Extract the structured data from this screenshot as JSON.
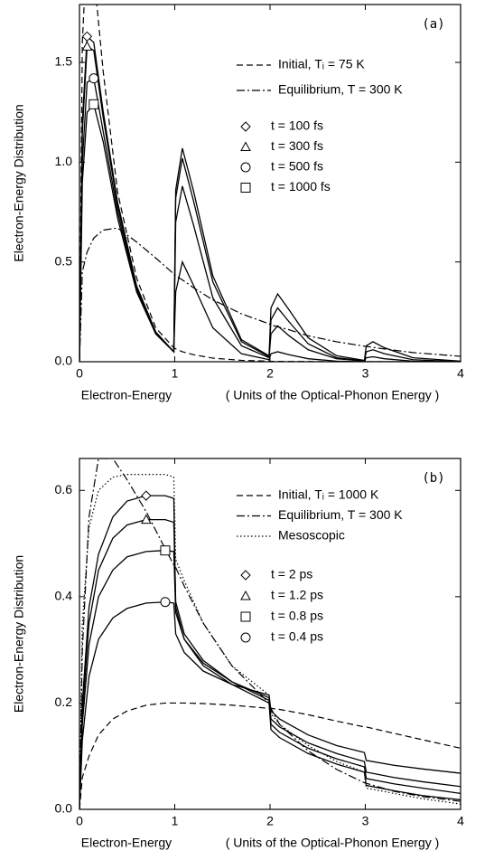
{
  "chart_data": [
    {
      "type": "line",
      "panel_label": "(a)",
      "ylabel": "Electron-Energy Distribution",
      "xlabel": "Electron-Energy",
      "xlabel_note": "( Units of the Optical-Phonon Energy )",
      "xlim": [
        0,
        4
      ],
      "xticks": [
        0,
        1,
        2,
        3,
        4
      ],
      "ylim": [
        0,
        1.79
      ],
      "yticks": [
        {
          "value": 0,
          "label": "0.0"
        },
        0.5,
        {
          "value": 1,
          "label": "1.0"
        },
        1.5
      ],
      "x": [
        0,
        0.03,
        0.08,
        0.15,
        0.25,
        0.4,
        0.6,
        0.8,
        0.99,
        1.01,
        1.08,
        1.2,
        1.4,
        1.7,
        1.99,
        2.01,
        2.08,
        2.2,
        2.4,
        2.7,
        2.99,
        3.01,
        3.08,
        3.2,
        3.5,
        4
      ],
      "series": [
        {
          "name": "Initial, Tᵢ = 75 K",
          "color": "#000000",
          "dash": "dashed",
          "marker": null,
          "values": [
            0,
            1.6,
            2.1,
            1.95,
            1.45,
            0.85,
            0.42,
            0.17,
            0.07,
            0.065,
            0.05,
            0.035,
            0.018,
            0.007,
            0.003,
            0.002,
            0.002,
            0.001,
            0.001,
            0,
            0,
            0,
            0,
            0,
            0,
            0
          ]
        },
        {
          "name": "Equilibrium, T = 300 K",
          "color": "#000000",
          "dash": "dashdot",
          "marker": null,
          "values": [
            0,
            0.45,
            0.55,
            0.62,
            0.66,
            0.67,
            0.6,
            0.52,
            0.44,
            0.43,
            0.41,
            0.37,
            0.31,
            0.24,
            0.19,
            0.185,
            0.175,
            0.16,
            0.13,
            0.1,
            0.078,
            0.077,
            0.072,
            0.064,
            0.046,
            0.027
          ]
        },
        {
          "name": "t = 100 fs",
          "color": "#000000",
          "dash": "solid",
          "marker": "diamond",
          "values": [
            0,
            1.2,
            1.63,
            1.6,
            1.25,
            0.8,
            0.38,
            0.15,
            0.05,
            0.35,
            0.5,
            0.38,
            0.17,
            0.04,
            0.01,
            0.04,
            0.05,
            0.035,
            0.015,
            0.003,
            0,
            0,
            0,
            0,
            0,
            0
          ]
        },
        {
          "name": "t = 300 fs",
          "color": "#000000",
          "dash": "solid",
          "marker": "triangle",
          "values": [
            0,
            1.15,
            1.58,
            1.56,
            1.22,
            0.78,
            0.37,
            0.14,
            0.05,
            0.7,
            0.88,
            0.68,
            0.32,
            0.08,
            0.02,
            0.14,
            0.18,
            0.13,
            0.06,
            0.015,
            0.003,
            0.02,
            0.025,
            0.015,
            0.003,
            0
          ]
        },
        {
          "name": "t = 500 fs",
          "color": "#000000",
          "dash": "solid",
          "marker": "circle",
          "values": [
            0,
            1.0,
            1.4,
            1.42,
            1.15,
            0.75,
            0.36,
            0.14,
            0.05,
            0.82,
            1.02,
            0.8,
            0.4,
            0.1,
            0.025,
            0.21,
            0.27,
            0.2,
            0.09,
            0.02,
            0.005,
            0.05,
            0.06,
            0.04,
            0.01,
            0
          ]
        },
        {
          "name": "t = 1000 fs",
          "color": "#000000",
          "dash": "solid",
          "marker": "square",
          "values": [
            0,
            0.9,
            1.25,
            1.29,
            1.1,
            0.72,
            0.35,
            0.14,
            0.05,
            0.86,
            1.07,
            0.85,
            0.43,
            0.11,
            0.03,
            0.27,
            0.34,
            0.26,
            0.12,
            0.03,
            0.007,
            0.08,
            0.1,
            0.07,
            0.02,
            0.003
          ]
        }
      ]
    },
    {
      "type": "line",
      "panel_label": "(b)",
      "ylabel": "Electron-Energy Distribution",
      "xlabel": "Electron-Energy",
      "xlabel_note": "( Units of the Optical-Phonon Energy )",
      "xlim": [
        0,
        4
      ],
      "xticks": [
        0,
        1,
        2,
        3,
        4
      ],
      "ylim": [
        0,
        0.66
      ],
      "yticks": [
        {
          "value": 0,
          "label": "0.0"
        },
        0.2,
        0.4,
        0.6
      ],
      "x": [
        0,
        0.03,
        0.1,
        0.2,
        0.35,
        0.5,
        0.7,
        0.9,
        0.99,
        1.01,
        1.1,
        1.3,
        1.6,
        1.99,
        2.01,
        2.1,
        2.4,
        2.7,
        2.99,
        3.01,
        3.3,
        3.6,
        4
      ],
      "series": [
        {
          "name": "Initial, Tᵢ = 1000 K",
          "color": "#000000",
          "dash": "dashed",
          "marker": null,
          "values": [
            0,
            0.06,
            0.1,
            0.14,
            0.17,
            0.185,
            0.196,
            0.2,
            0.2,
            0.2,
            0.2,
            0.199,
            0.196,
            0.19,
            0.19,
            0.188,
            0.178,
            0.166,
            0.155,
            0.155,
            0.143,
            0.131,
            0.115
          ]
        },
        {
          "name": "Equilibrium, T = 300 K",
          "color": "#000000",
          "dash": "dashdot",
          "marker": null,
          "values": [
            0,
            0.3,
            0.55,
            0.66,
            0.66,
            0.62,
            0.56,
            0.49,
            0.46,
            0.455,
            0.42,
            0.35,
            0.27,
            0.2,
            0.19,
            0.16,
            0.11,
            0.075,
            0.05,
            0.049,
            0.034,
            0.024,
            0.015
          ]
        },
        {
          "name": "Mesoscopic",
          "color": "#000000",
          "dash": "dotted",
          "marker": null,
          "values": [
            0,
            0.35,
            0.53,
            0.6,
            0.625,
            0.63,
            0.63,
            0.63,
            0.625,
            0.47,
            0.43,
            0.35,
            0.27,
            0.215,
            0.18,
            0.16,
            0.12,
            0.09,
            0.07,
            0.04,
            0.03,
            0.02,
            0.01
          ]
        },
        {
          "name": "t = 2 ps",
          "color": "#000000",
          "dash": "solid",
          "marker": "diamond",
          "values": [
            0,
            0.2,
            0.38,
            0.48,
            0.55,
            0.58,
            0.59,
            0.59,
            0.585,
            0.38,
            0.32,
            0.27,
            0.235,
            0.2,
            0.15,
            0.135,
            0.105,
            0.085,
            0.07,
            0.045,
            0.035,
            0.026,
            0.018
          ]
        },
        {
          "name": "t = 1.2 ps",
          "color": "#000000",
          "dash": "solid",
          "marker": "triangle",
          "values": [
            0,
            0.18,
            0.35,
            0.45,
            0.51,
            0.535,
            0.545,
            0.545,
            0.54,
            0.39,
            0.33,
            0.28,
            0.24,
            0.205,
            0.16,
            0.145,
            0.115,
            0.095,
            0.08,
            0.058,
            0.048,
            0.04,
            0.03
          ]
        },
        {
          "name": "t = 0.8 ps",
          "color": "#000000",
          "dash": "solid",
          "marker": "square",
          "values": [
            0,
            0.16,
            0.31,
            0.4,
            0.45,
            0.475,
            0.485,
            0.487,
            0.485,
            0.37,
            0.32,
            0.275,
            0.24,
            0.21,
            0.17,
            0.155,
            0.125,
            0.105,
            0.09,
            0.07,
            0.06,
            0.052,
            0.043
          ]
        },
        {
          "name": "t = 0.4 ps",
          "color": "#000000",
          "dash": "solid",
          "marker": "circle",
          "values": [
            0,
            0.13,
            0.25,
            0.32,
            0.36,
            0.378,
            0.388,
            0.39,
            0.388,
            0.33,
            0.295,
            0.26,
            0.235,
            0.215,
            0.185,
            0.17,
            0.14,
            0.12,
            0.107,
            0.092,
            0.083,
            0.076,
            0.068
          ]
        }
      ]
    }
  ]
}
